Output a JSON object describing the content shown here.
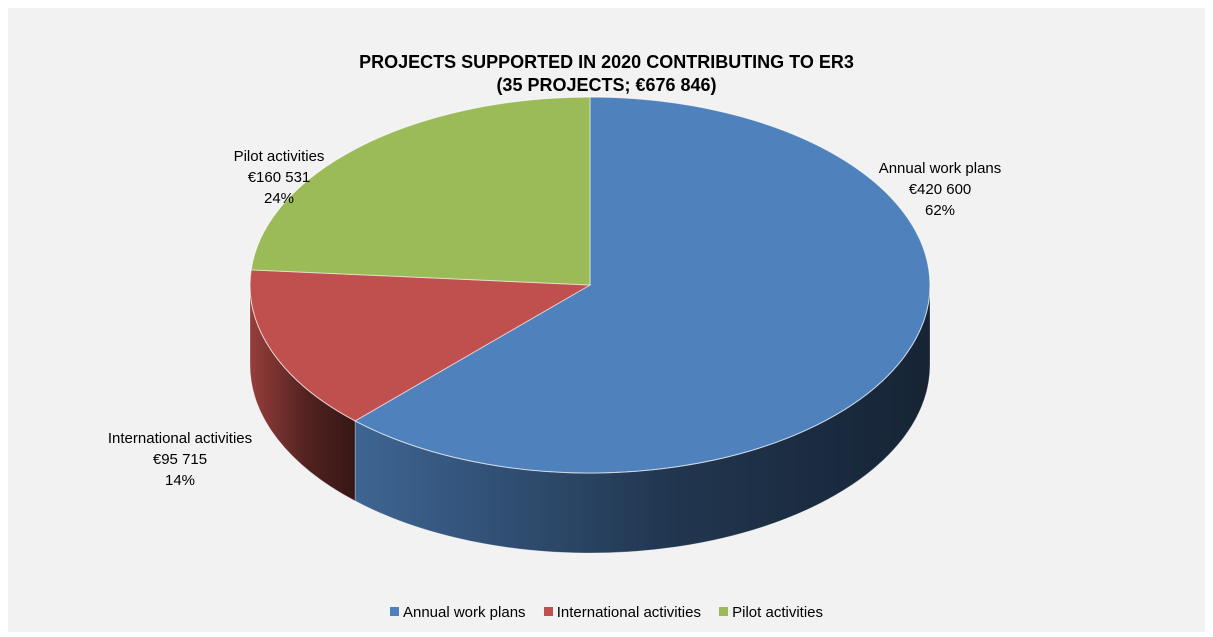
{
  "chart_data": {
    "type": "pie",
    "title": [
      "PROJECTS SUPPORTED IN 2020 CONTRIBUTING TO ER3",
      "(35 PROJECTS; €676 846)"
    ],
    "legend_position": "bottom",
    "slices": [
      {
        "name": "Annual work plans",
        "value": 420600,
        "value_label": "€420  600",
        "percent_label": "62%",
        "color": "#4f81bd"
      },
      {
        "name": "International activities",
        "value": 95715,
        "value_label": "€95 715",
        "percent_label": "14%",
        "color": "#c0504d"
      },
      {
        "name": "Pilot activities",
        "value": 160531,
        "value_label": "€160 531",
        "percent_label": "24%",
        "color": "#9bbb59"
      }
    ]
  }
}
